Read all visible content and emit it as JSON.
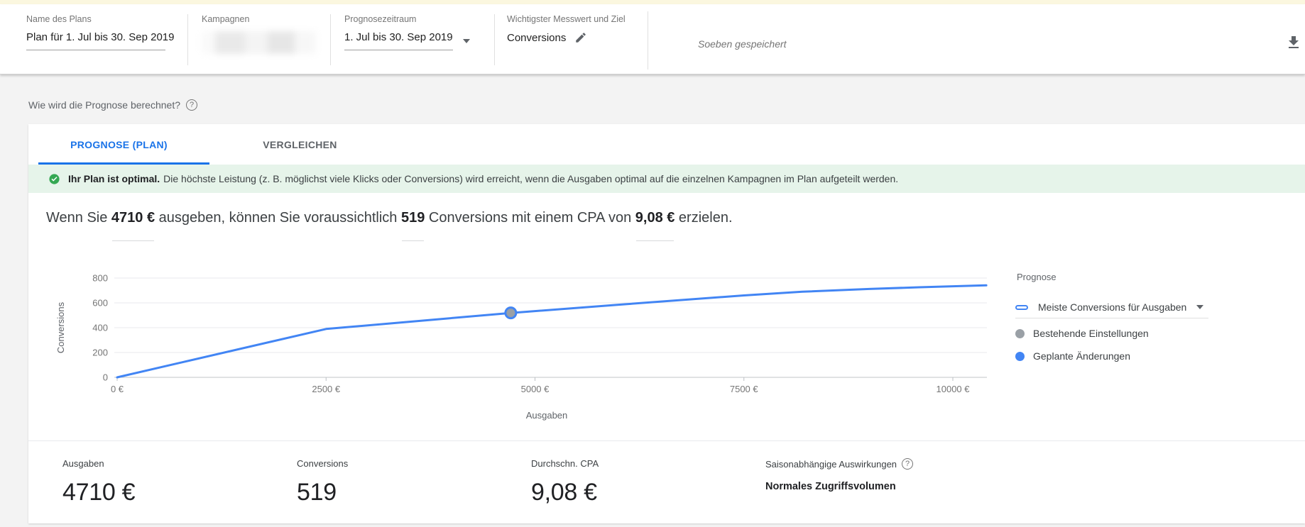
{
  "header": {
    "fields": [
      {
        "label": "Name des Plans",
        "value": "Plan für 1. Jul bis 30. Sep 2019"
      },
      {
        "label": "Kampagnen",
        "value_redacted": true
      },
      {
        "label": "Prognosezeitraum",
        "value": "1. Jul bis 30. Sep 2019",
        "dropdown": true
      },
      {
        "label": "Wichtigster Messwert und Ziel",
        "value": "Conversions",
        "editable": true
      }
    ],
    "saved_status": "Soeben gespeichert",
    "icons": [
      "edit-pencil-icon",
      "download-icon",
      "dropdown-arrow-icon"
    ]
  },
  "page": {
    "how_question": "Wie wird die Prognose berechnet?",
    "tabs": [
      {
        "label": "PROGNOSE (PLAN)",
        "active": true
      },
      {
        "label": "VERGLEICHEN",
        "active": false
      }
    ],
    "banner": {
      "bold": "Ihr Plan ist optimal.",
      "text": "Die höchste Leistung (z. B. möglichst viele Klicks oder Conversions) wird erreicht, wenn die Ausgaben optimal auf die einzelnen Kampagnen im Plan aufgeteilt werden."
    },
    "headline": {
      "part1": "Wenn Sie ",
      "spend": "4710 €",
      "part2": " ausgeben, können Sie voraussichtlich ",
      "conversions": "519",
      "part3": " Conversions mit einem CPA von ",
      "cpa": "9,08 €",
      "part4": " erzielen."
    }
  },
  "chart_data": {
    "type": "line",
    "title": "",
    "xlabel": "Ausgaben",
    "ylabel": "Conversions",
    "xlim": [
      0,
      10400
    ],
    "ylim": [
      0,
      800
    ],
    "grid": true,
    "x_ticks": [
      {
        "value": 0,
        "label": "0 €"
      },
      {
        "value": 2500,
        "label": "2500 €"
      },
      {
        "value": 5000,
        "label": "5000 €"
      },
      {
        "value": 7500,
        "label": "7500 €"
      },
      {
        "value": 10000,
        "label": "10000 €"
      }
    ],
    "y_ticks": [
      0,
      200,
      400,
      600,
      800
    ],
    "series": [
      {
        "name": "Meiste Conversions für Ausgaben",
        "color": "#4285f4",
        "points": [
          [
            0,
            0
          ],
          [
            2500,
            390
          ],
          [
            3500,
            448
          ],
          [
            4710,
            519
          ],
          [
            6000,
            585
          ],
          [
            7500,
            660
          ],
          [
            8200,
            690
          ],
          [
            9000,
            712
          ],
          [
            9600,
            726
          ],
          [
            10000,
            734
          ],
          [
            10400,
            741
          ]
        ]
      }
    ],
    "marker": {
      "x": 4710,
      "y": 519,
      "fill": "#9aa0a6",
      "stroke": "#4285f4"
    }
  },
  "legend": {
    "title": "Prognose",
    "series_label": "Meiste Conversions für Ausgaben",
    "items": [
      {
        "label": "Bestehende Einstellungen",
        "color": "#9aa0a6"
      },
      {
        "label": "Geplante Änderungen",
        "color": "#4285f4"
      }
    ]
  },
  "stats": {
    "items": [
      {
        "label": "Ausgaben",
        "value": "4710 €"
      },
      {
        "label": "Conversions",
        "value": "519"
      },
      {
        "label": "Durchschn. CPA",
        "value": "9,08 €"
      }
    ],
    "seasonal": {
      "label": "Saisonabhängige Auswirkungen",
      "value": "Normales Zugriffsvolumen"
    }
  },
  "colors": {
    "accent_blue": "#1a73e8",
    "chart_line_blue": "#4285f4",
    "marker_gray": "#9aa0a6",
    "banner_green_bg": "#e6f4ea",
    "check_green": "#34a853",
    "top_strip_yellow": "#fbf7df"
  }
}
